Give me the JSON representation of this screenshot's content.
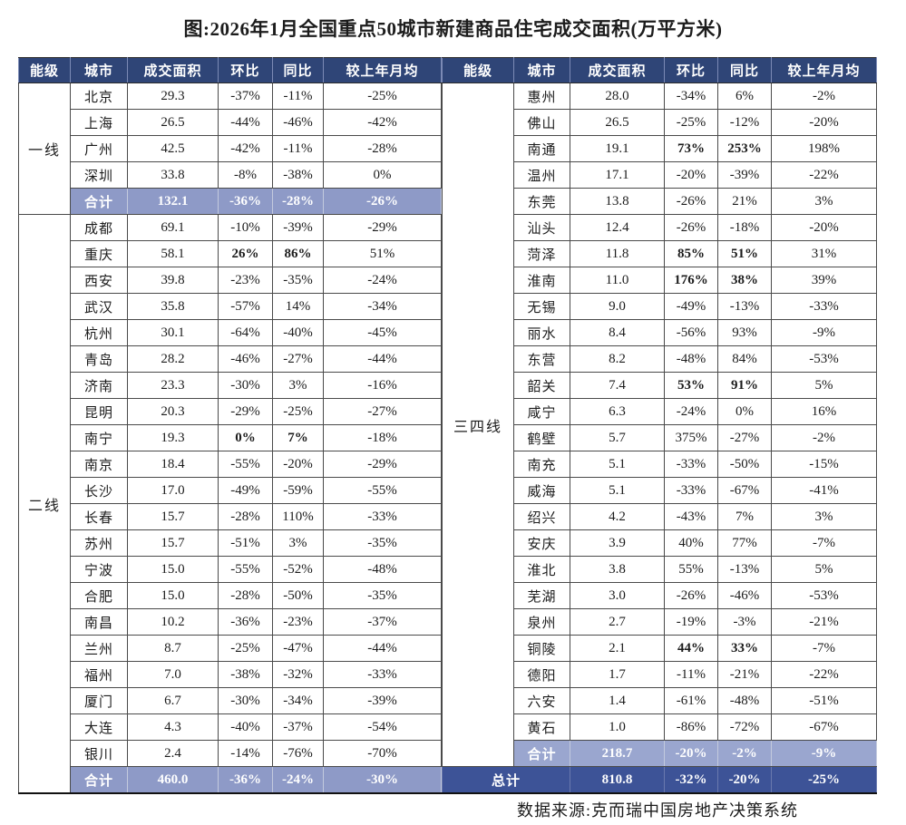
{
  "title": "图:2026年1月全国重点50城市新建商品住宅成交面积(万平方米)",
  "source_note": "数据来源:克而瑞中国房地产决策系统",
  "columns": {
    "tier": "能级",
    "city": "城市",
    "area": "成交面积",
    "mom": "环比",
    "yoy": "同比",
    "vs_avg": "较上年月均"
  },
  "colors": {
    "header_bg": "#2f4577",
    "subtotal_bg": "#8e9ac7",
    "subtotal_right_bg": "#9aa6cf",
    "grand_total_bg": "#3d5397",
    "border": "#4a4a4a",
    "text": "#1c1c1c",
    "total_text": "#ffffff"
  },
  "left": {
    "groups": [
      {
        "tier": "一线",
        "cities": [
          {
            "city": "北京",
            "area": "29.3",
            "mom": "-37%",
            "yoy": "-11%",
            "vs_avg": "-25%"
          },
          {
            "city": "上海",
            "area": "26.5",
            "mom": "-44%",
            "yoy": "-46%",
            "vs_avg": "-42%"
          },
          {
            "city": "广州",
            "area": "42.5",
            "mom": "-42%",
            "yoy": "-11%",
            "vs_avg": "-28%"
          },
          {
            "city": "深圳",
            "area": "33.8",
            "mom": "-8%",
            "yoy": "-38%",
            "vs_avg": "0%"
          }
        ],
        "subtotal": {
          "label": "合计",
          "area": "132.1",
          "mom": "-36%",
          "yoy": "-28%",
          "vs_avg": "-26%"
        }
      },
      {
        "tier": "二线",
        "cities": [
          {
            "city": "成都",
            "area": "69.1",
            "mom": "-10%",
            "yoy": "-39%",
            "vs_avg": "-29%"
          },
          {
            "city": "重庆",
            "area": "58.1",
            "mom": "26%",
            "yoy": "86%",
            "vs_avg": "51%",
            "bold": true
          },
          {
            "city": "西安",
            "area": "39.8",
            "mom": "-23%",
            "yoy": "-35%",
            "vs_avg": "-24%"
          },
          {
            "city": "武汉",
            "area": "35.8",
            "mom": "-57%",
            "yoy": "14%",
            "vs_avg": "-34%"
          },
          {
            "city": "杭州",
            "area": "30.1",
            "mom": "-64%",
            "yoy": "-40%",
            "vs_avg": "-45%"
          },
          {
            "city": "青岛",
            "area": "28.2",
            "mom": "-46%",
            "yoy": "-27%",
            "vs_avg": "-44%"
          },
          {
            "city": "济南",
            "area": "23.3",
            "mom": "-30%",
            "yoy": "3%",
            "vs_avg": "-16%"
          },
          {
            "city": "昆明",
            "area": "20.3",
            "mom": "-29%",
            "yoy": "-25%",
            "vs_avg": "-27%"
          },
          {
            "city": "南宁",
            "area": "19.3",
            "mom": "0%",
            "yoy": "7%",
            "vs_avg": "-18%",
            "bold": true
          },
          {
            "city": "南京",
            "area": "18.4",
            "mom": "-55%",
            "yoy": "-20%",
            "vs_avg": "-29%"
          },
          {
            "city": "长沙",
            "area": "17.0",
            "mom": "-49%",
            "yoy": "-59%",
            "vs_avg": "-55%"
          },
          {
            "city": "长春",
            "area": "15.7",
            "mom": "-28%",
            "yoy": "110%",
            "vs_avg": "-33%"
          },
          {
            "city": "苏州",
            "area": "15.7",
            "mom": "-51%",
            "yoy": "3%",
            "vs_avg": "-35%"
          },
          {
            "city": "宁波",
            "area": "15.0",
            "mom": "-55%",
            "yoy": "-52%",
            "vs_avg": "-48%"
          },
          {
            "city": "合肥",
            "area": "15.0",
            "mom": "-28%",
            "yoy": "-50%",
            "vs_avg": "-35%"
          },
          {
            "city": "南昌",
            "area": "10.2",
            "mom": "-36%",
            "yoy": "-23%",
            "vs_avg": "-37%"
          },
          {
            "city": "兰州",
            "area": "8.7",
            "mom": "-25%",
            "yoy": "-47%",
            "vs_avg": "-44%"
          },
          {
            "city": "福州",
            "area": "7.0",
            "mom": "-38%",
            "yoy": "-32%",
            "vs_avg": "-33%"
          },
          {
            "city": "厦门",
            "area": "6.7",
            "mom": "-30%",
            "yoy": "-34%",
            "vs_avg": "-39%"
          },
          {
            "city": "大连",
            "area": "4.3",
            "mom": "-40%",
            "yoy": "-37%",
            "vs_avg": "-54%"
          },
          {
            "city": "银川",
            "area": "2.4",
            "mom": "-14%",
            "yoy": "-76%",
            "vs_avg": "-70%"
          }
        ],
        "subtotal": {
          "label": "合计",
          "area": "460.0",
          "mom": "-36%",
          "yoy": "-24%",
          "vs_avg": "-30%"
        }
      }
    ]
  },
  "right": {
    "groups": [
      {
        "tier": "三四线",
        "cities": [
          {
            "city": "惠州",
            "area": "28.0",
            "mom": "-34%",
            "yoy": "6%",
            "vs_avg": "-2%"
          },
          {
            "city": "佛山",
            "area": "26.5",
            "mom": "-25%",
            "yoy": "-12%",
            "vs_avg": "-20%"
          },
          {
            "city": "南通",
            "area": "19.1",
            "mom": "73%",
            "yoy": "253%",
            "vs_avg": "198%",
            "bold": true
          },
          {
            "city": "温州",
            "area": "17.1",
            "mom": "-20%",
            "yoy": "-39%",
            "vs_avg": "-22%"
          },
          {
            "city": "东莞",
            "area": "13.8",
            "mom": "-26%",
            "yoy": "21%",
            "vs_avg": "3%"
          },
          {
            "city": "汕头",
            "area": "12.4",
            "mom": "-26%",
            "yoy": "-18%",
            "vs_avg": "-20%"
          },
          {
            "city": "菏泽",
            "area": "11.8",
            "mom": "85%",
            "yoy": "51%",
            "vs_avg": "31%",
            "bold": true
          },
          {
            "city": "淮南",
            "area": "11.0",
            "mom": "176%",
            "yoy": "38%",
            "vs_avg": "39%",
            "bold": true
          },
          {
            "city": "无锡",
            "area": "9.0",
            "mom": "-49%",
            "yoy": "-13%",
            "vs_avg": "-33%"
          },
          {
            "city": "丽水",
            "area": "8.4",
            "mom": "-56%",
            "yoy": "93%",
            "vs_avg": "-9%"
          },
          {
            "city": "东营",
            "area": "8.2",
            "mom": "-48%",
            "yoy": "84%",
            "vs_avg": "-53%"
          },
          {
            "city": "韶关",
            "area": "7.4",
            "mom": "53%",
            "yoy": "91%",
            "vs_avg": "5%",
            "bold": true
          },
          {
            "city": "咸宁",
            "area": "6.3",
            "mom": "-24%",
            "yoy": "0%",
            "vs_avg": "16%"
          },
          {
            "city": "鹤壁",
            "area": "5.7",
            "mom": "375%",
            "yoy": "-27%",
            "vs_avg": "-2%"
          },
          {
            "city": "南充",
            "area": "5.1",
            "mom": "-33%",
            "yoy": "-50%",
            "vs_avg": "-15%"
          },
          {
            "city": "威海",
            "area": "5.1",
            "mom": "-33%",
            "yoy": "-67%",
            "vs_avg": "-41%"
          },
          {
            "city": "绍兴",
            "area": "4.2",
            "mom": "-43%",
            "yoy": "7%",
            "vs_avg": "3%"
          },
          {
            "city": "安庆",
            "area": "3.9",
            "mom": "40%",
            "yoy": "77%",
            "vs_avg": "-7%"
          },
          {
            "city": "淮北",
            "area": "3.8",
            "mom": "55%",
            "yoy": "-13%",
            "vs_avg": "5%"
          },
          {
            "city": "芜湖",
            "area": "3.0",
            "mom": "-26%",
            "yoy": "-46%",
            "vs_avg": "-53%"
          },
          {
            "city": "泉州",
            "area": "2.7",
            "mom": "-19%",
            "yoy": "-3%",
            "vs_avg": "-21%"
          },
          {
            "city": "铜陵",
            "area": "2.1",
            "mom": "44%",
            "yoy": "33%",
            "vs_avg": "-7%",
            "bold": true
          },
          {
            "city": "德阳",
            "area": "1.7",
            "mom": "-11%",
            "yoy": "-21%",
            "vs_avg": "-22%"
          },
          {
            "city": "六安",
            "area": "1.4",
            "mom": "-61%",
            "yoy": "-48%",
            "vs_avg": "-51%"
          },
          {
            "city": "黄石",
            "area": "1.0",
            "mom": "-86%",
            "yoy": "-72%",
            "vs_avg": "-67%"
          }
        ],
        "subtotal": {
          "label": "合计",
          "area": "218.7",
          "mom": "-20%",
          "yoy": "-2%",
          "vs_avg": "-9%"
        }
      }
    ],
    "grand_total": {
      "label": "总计",
      "area": "810.8",
      "mom": "-32%",
      "yoy": "-20%",
      "vs_avg": "-25%"
    }
  }
}
